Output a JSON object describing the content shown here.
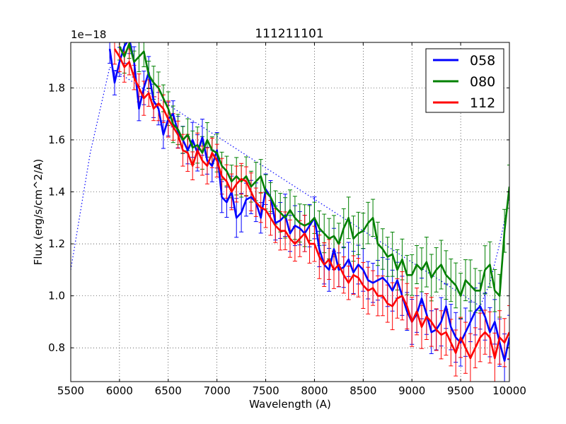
{
  "chart_data": {
    "type": "line",
    "title": "111211101",
    "xlabel": "Wavelength (A)",
    "ylabel": "Flux (erg/s/cm^2/A)",
    "y_scale_label": "1e−18",
    "xlim": [
      5500,
      10000
    ],
    "ylim": [
      0.67,
      1.975
    ],
    "xticks": [
      5500,
      6000,
      6500,
      7000,
      7500,
      8000,
      8500,
      9000,
      9500,
      10000
    ],
    "yticks": [
      0.8,
      1.0,
      1.2,
      1.4,
      1.6,
      1.8
    ],
    "ytick_labels": [
      "0.8",
      "1.0",
      "1.2",
      "1.4",
      "1.6",
      "1.8"
    ],
    "grid": true,
    "legend_position": "top-right",
    "series": [
      {
        "name": "058",
        "color": "#0000ff",
        "x": [
          5900,
          5950,
          6000,
          6050,
          6100,
          6150,
          6200,
          6250,
          6300,
          6350,
          6400,
          6450,
          6500,
          6550,
          6600,
          6650,
          6700,
          6750,
          6800,
          6850,
          6900,
          6950,
          7000,
          7050,
          7100,
          7150,
          7200,
          7250,
          7300,
          7350,
          7400,
          7450,
          7500,
          7550,
          7600,
          7650,
          7700,
          7750,
          7800,
          7850,
          7900,
          7950,
          8000,
          8050,
          8100,
          8150,
          8200,
          8250,
          8300,
          8350,
          8400,
          8450,
          8500,
          8550,
          8600,
          8650,
          8700,
          8750,
          8800,
          8850,
          8900,
          8950,
          9000,
          9050,
          9100,
          9150,
          9200,
          9250,
          9300,
          9350,
          9400,
          9450,
          9500,
          9550,
          9600,
          9650,
          9700,
          9750,
          9800,
          9850,
          9900,
          9950,
          10000
        ],
        "values": [
          1.95,
          1.82,
          1.9,
          1.96,
          1.99,
          1.9,
          1.72,
          1.8,
          1.86,
          1.75,
          1.72,
          1.62,
          1.68,
          1.7,
          1.63,
          1.6,
          1.56,
          1.6,
          1.55,
          1.61,
          1.52,
          1.5,
          1.56,
          1.38,
          1.36,
          1.4,
          1.3,
          1.32,
          1.37,
          1.38,
          1.36,
          1.3,
          1.41,
          1.38,
          1.28,
          1.29,
          1.31,
          1.24,
          1.27,
          1.26,
          1.24,
          1.27,
          1.3,
          1.18,
          1.12,
          1.1,
          1.18,
          1.1,
          1.11,
          1.14,
          1.09,
          1.12,
          1.1,
          1.06,
          1.05,
          1.06,
          1.07,
          1.05,
          1.02,
          1.06,
          1.0,
          0.94,
          0.9,
          0.93,
          0.99,
          0.93,
          0.86,
          0.87,
          0.9,
          0.96,
          0.88,
          0.84,
          0.82,
          0.86,
          0.9,
          0.94,
          0.96,
          0.92,
          0.86,
          0.9,
          0.82,
          0.75,
          0.84
        ]
      },
      {
        "name": "080",
        "color": "#008000",
        "x": [
          6000,
          6050,
          6100,
          6150,
          6200,
          6250,
          6300,
          6350,
          6400,
          6450,
          6500,
          6550,
          6600,
          6650,
          6700,
          6750,
          6800,
          6850,
          6900,
          6950,
          7000,
          7050,
          7100,
          7150,
          7200,
          7250,
          7300,
          7350,
          7400,
          7450,
          7500,
          7550,
          7600,
          7650,
          7700,
          7750,
          7800,
          7850,
          7900,
          7950,
          8000,
          8050,
          8100,
          8150,
          8200,
          8250,
          8300,
          8350,
          8400,
          8450,
          8500,
          8550,
          8600,
          8650,
          8700,
          8750,
          8800,
          8850,
          8900,
          8950,
          9000,
          9050,
          9100,
          9150,
          9200,
          9250,
          9300,
          9350,
          9400,
          9450,
          9500,
          9550,
          9600,
          9650,
          9700,
          9750,
          9800,
          9850,
          9900,
          9950,
          10000
        ],
        "values": [
          1.96,
          1.92,
          1.97,
          1.9,
          1.92,
          1.94,
          1.85,
          1.82,
          1.8,
          1.76,
          1.72,
          1.66,
          1.64,
          1.6,
          1.62,
          1.57,
          1.58,
          1.55,
          1.6,
          1.56,
          1.55,
          1.5,
          1.48,
          1.44,
          1.46,
          1.44,
          1.46,
          1.42,
          1.44,
          1.46,
          1.4,
          1.38,
          1.34,
          1.32,
          1.3,
          1.33,
          1.3,
          1.28,
          1.27,
          1.28,
          1.3,
          1.26,
          1.24,
          1.22,
          1.23,
          1.2,
          1.26,
          1.3,
          1.22,
          1.24,
          1.25,
          1.28,
          1.3,
          1.2,
          1.18,
          1.15,
          1.16,
          1.1,
          1.14,
          1.08,
          1.08,
          1.12,
          1.1,
          1.13,
          1.07,
          1.1,
          1.12,
          1.08,
          1.06,
          1.04,
          1.0,
          1.06,
          1.04,
          1.02,
          1.02,
          1.1,
          1.12,
          1.02,
          1.0,
          1.25,
          1.42
        ]
      },
      {
        "name": "112",
        "color": "#ff0000",
        "x": [
          5950,
          6000,
          6050,
          6100,
          6150,
          6200,
          6250,
          6300,
          6350,
          6400,
          6450,
          6500,
          6550,
          6600,
          6650,
          6700,
          6750,
          6800,
          6850,
          6900,
          6950,
          7000,
          7050,
          7100,
          7150,
          7200,
          7250,
          7300,
          7350,
          7400,
          7450,
          7500,
          7550,
          7600,
          7650,
          7700,
          7750,
          7800,
          7850,
          7900,
          7950,
          8000,
          8050,
          8100,
          8150,
          8200,
          8250,
          8300,
          8350,
          8400,
          8450,
          8500,
          8550,
          8600,
          8650,
          8700,
          8750,
          8800,
          8850,
          8900,
          8950,
          9000,
          9050,
          9100,
          9150,
          9200,
          9250,
          9300,
          9350,
          9400,
          9450,
          9500,
          9550,
          9600,
          9650,
          9700,
          9750,
          9800,
          9850,
          9900,
          9950,
          10000
        ],
        "values": [
          1.95,
          1.92,
          1.88,
          1.9,
          1.84,
          1.8,
          1.76,
          1.78,
          1.72,
          1.74,
          1.72,
          1.68,
          1.65,
          1.62,
          1.56,
          1.55,
          1.5,
          1.56,
          1.52,
          1.5,
          1.55,
          1.52,
          1.46,
          1.44,
          1.4,
          1.43,
          1.45,
          1.44,
          1.4,
          1.36,
          1.34,
          1.33,
          1.3,
          1.27,
          1.25,
          1.25,
          1.22,
          1.2,
          1.22,
          1.24,
          1.2,
          1.2,
          1.15,
          1.12,
          1.14,
          1.1,
          1.12,
          1.08,
          1.05,
          1.08,
          1.07,
          1.04,
          1.02,
          1.03,
          1.0,
          1.0,
          0.97,
          0.96,
          0.99,
          1.0,
          0.96,
          0.9,
          0.94,
          0.88,
          0.92,
          0.9,
          0.87,
          0.85,
          0.86,
          0.82,
          0.78,
          0.84,
          0.8,
          0.76,
          0.8,
          0.84,
          0.86,
          0.84,
          0.76,
          0.84,
          0.82,
          0.86
        ]
      }
    ],
    "dotted_reference": {
      "color": "#0000ff",
      "x": [
        5500,
        5700,
        5900,
        9700,
        9800,
        9900,
        10000
      ],
      "values": [
        1.1,
        1.55,
        1.88,
        0.96,
        1.05,
        1.2,
        1.38
      ]
    }
  }
}
